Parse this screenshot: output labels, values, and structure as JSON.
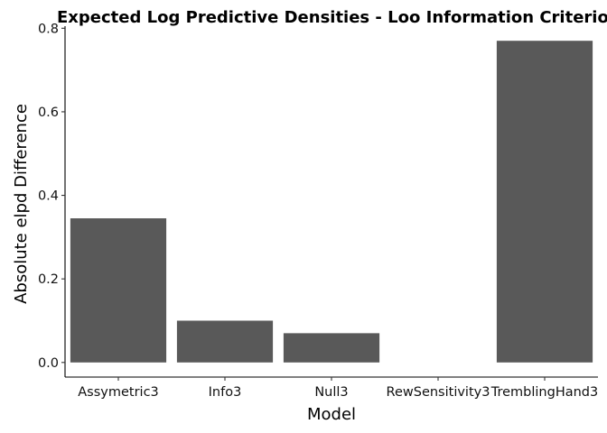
{
  "chart_data": {
    "type": "bar",
    "title": "Expected Log Predictive Densities - Loo Information Criterion",
    "xlabel": "Model",
    "ylabel": "Absolute elpd Difference",
    "categories": [
      "Assymetric3",
      "Info3",
      "Null3",
      "RewSensitivity3",
      "TremblingHand3"
    ],
    "values": [
      0.345,
      0.1,
      0.07,
      0.0,
      0.77
    ],
    "ylim": [
      -0.035,
      0.805
    ],
    "yticks": [
      "0.0",
      "0.2",
      "0.4",
      "0.6",
      "0.8"
    ],
    "ytick_values": [
      0,
      0.2,
      0.4,
      0.6,
      0.8
    ],
    "grid": false,
    "legend": "none",
    "bar_color": "#595959"
  }
}
